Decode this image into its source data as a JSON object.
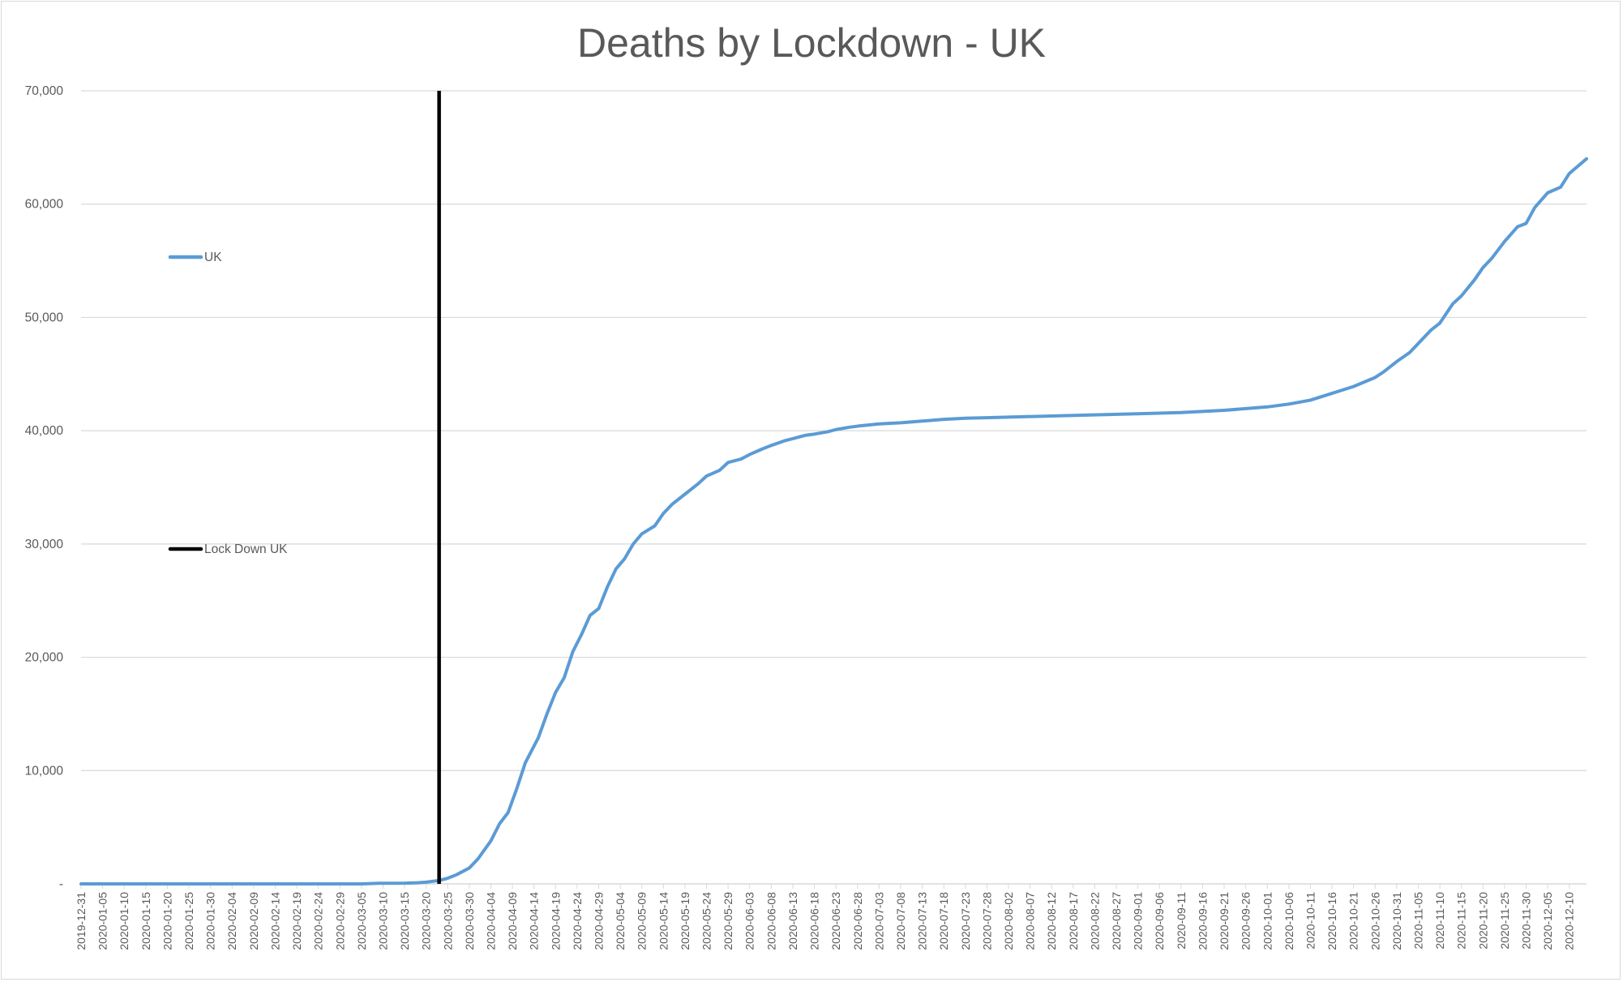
{
  "chart_data": {
    "type": "line",
    "title": "Deaths by Lockdown - UK",
    "xlabel": "",
    "ylabel": "",
    "x_range": [
      "2019-12-31",
      "2020-12-14"
    ],
    "ylim": [
      0,
      70000
    ],
    "y_ticks": [
      {
        "value": 0,
        "label": "-"
      },
      {
        "value": 10000,
        "label": "10,000"
      },
      {
        "value": 20000,
        "label": "20,000"
      },
      {
        "value": 30000,
        "label": "30,000"
      },
      {
        "value": 40000,
        "label": "40,000"
      },
      {
        "value": 50000,
        "label": "50,000"
      },
      {
        "value": 60000,
        "label": "60,000"
      },
      {
        "value": 70000,
        "label": "70,000"
      }
    ],
    "x_tick_labels": [
      "2019-12-31",
      "2020-01-05",
      "2020-01-10",
      "2020-01-15",
      "2020-01-20",
      "2020-01-25",
      "2020-01-30",
      "2020-02-04",
      "2020-02-09",
      "2020-02-14",
      "2020-02-19",
      "2020-02-24",
      "2020-02-29",
      "2020-03-05",
      "2020-03-10",
      "2020-03-15",
      "2020-03-20",
      "2020-03-25",
      "2020-03-30",
      "2020-04-04",
      "2020-04-09",
      "2020-04-14",
      "2020-04-19",
      "2020-04-24",
      "2020-04-29",
      "2020-05-04",
      "2020-05-09",
      "2020-05-14",
      "2020-05-19",
      "2020-05-24",
      "2020-05-29",
      "2020-06-03",
      "2020-06-08",
      "2020-06-13",
      "2020-06-18",
      "2020-06-23",
      "2020-06-28",
      "2020-07-03",
      "2020-07-08",
      "2020-07-13",
      "2020-07-18",
      "2020-07-23",
      "2020-07-28",
      "2020-08-02",
      "2020-08-07",
      "2020-08-12",
      "2020-08-17",
      "2020-08-22",
      "2020-08-27",
      "2020-09-01",
      "2020-09-06",
      "2020-09-11",
      "2020-09-16",
      "2020-09-21",
      "2020-09-26",
      "2020-10-01",
      "2020-10-06",
      "2020-10-11",
      "2020-10-16",
      "2020-10-21",
      "2020-10-26",
      "2020-10-31",
      "2020-11-05",
      "2020-11-10",
      "2020-11-15",
      "2020-11-20",
      "2020-11-25",
      "2020-11-30",
      "2020-12-05",
      "2020-12-10"
    ],
    "grid": true,
    "legend_placement": "left-inside",
    "series": [
      {
        "name": "UK",
        "color": "#5b9bd5",
        "points": [
          {
            "x": "2019-12-31",
            "y": 0
          },
          {
            "x": "2020-02-29",
            "y": 0
          },
          {
            "x": "2020-03-05",
            "y": 0
          },
          {
            "x": "2020-03-09",
            "y": 50
          },
          {
            "x": "2020-03-15",
            "y": 60
          },
          {
            "x": "2020-03-18",
            "y": 100
          },
          {
            "x": "2020-03-20",
            "y": 150
          },
          {
            "x": "2020-03-23",
            "y": 300
          },
          {
            "x": "2020-03-25",
            "y": 500
          },
          {
            "x": "2020-03-27",
            "y": 800
          },
          {
            "x": "2020-03-30",
            "y": 1400
          },
          {
            "x": "2020-04-01",
            "y": 2200
          },
          {
            "x": "2020-04-04",
            "y": 3800
          },
          {
            "x": "2020-04-06",
            "y": 5300
          },
          {
            "x": "2020-04-08",
            "y": 6300
          },
          {
            "x": "2020-04-10",
            "y": 8400
          },
          {
            "x": "2020-04-12",
            "y": 10700
          },
          {
            "x": "2020-04-15",
            "y": 12900
          },
          {
            "x": "2020-04-17",
            "y": 15000
          },
          {
            "x": "2020-04-19",
            "y": 16900
          },
          {
            "x": "2020-04-21",
            "y": 18200
          },
          {
            "x": "2020-04-23",
            "y": 20500
          },
          {
            "x": "2020-04-25",
            "y": 22000
          },
          {
            "x": "2020-04-27",
            "y": 23700
          },
          {
            "x": "2020-04-29",
            "y": 24300
          },
          {
            "x": "2020-05-01",
            "y": 26200
          },
          {
            "x": "2020-05-03",
            "y": 27800
          },
          {
            "x": "2020-05-05",
            "y": 28700
          },
          {
            "x": "2020-05-07",
            "y": 30000
          },
          {
            "x": "2020-05-09",
            "y": 30900
          },
          {
            "x": "2020-05-12",
            "y": 31600
          },
          {
            "x": "2020-05-14",
            "y": 32700
          },
          {
            "x": "2020-05-16",
            "y": 33500
          },
          {
            "x": "2020-05-19",
            "y": 34400
          },
          {
            "x": "2020-05-22",
            "y": 35300
          },
          {
            "x": "2020-05-24",
            "y": 36000
          },
          {
            "x": "2020-05-27",
            "y": 36500
          },
          {
            "x": "2020-05-29",
            "y": 37200
          },
          {
            "x": "2020-06-01",
            "y": 37500
          },
          {
            "x": "2020-06-03",
            "y": 37900
          },
          {
            "x": "2020-06-06",
            "y": 38400
          },
          {
            "x": "2020-06-08",
            "y": 38700
          },
          {
            "x": "2020-06-11",
            "y": 39100
          },
          {
            "x": "2020-06-13",
            "y": 39300
          },
          {
            "x": "2020-06-16",
            "y": 39600
          },
          {
            "x": "2020-06-18",
            "y": 39700
          },
          {
            "x": "2020-06-21",
            "y": 39900
          },
          {
            "x": "2020-06-23",
            "y": 40100
          },
          {
            "x": "2020-06-26",
            "y": 40300
          },
          {
            "x": "2020-06-28",
            "y": 40400
          },
          {
            "x": "2020-07-03",
            "y": 40600
          },
          {
            "x": "2020-07-08",
            "y": 40700
          },
          {
            "x": "2020-07-13",
            "y": 40850
          },
          {
            "x": "2020-07-18",
            "y": 41000
          },
          {
            "x": "2020-07-23",
            "y": 41100
          },
          {
            "x": "2020-07-28",
            "y": 41150
          },
          {
            "x": "2020-08-02",
            "y": 41200
          },
          {
            "x": "2020-08-12",
            "y": 41300
          },
          {
            "x": "2020-08-22",
            "y": 41400
          },
          {
            "x": "2020-09-01",
            "y": 41500
          },
          {
            "x": "2020-09-11",
            "y": 41600
          },
          {
            "x": "2020-09-16",
            "y": 41700
          },
          {
            "x": "2020-09-21",
            "y": 41800
          },
          {
            "x": "2020-09-26",
            "y": 41950
          },
          {
            "x": "2020-10-01",
            "y": 42100
          },
          {
            "x": "2020-10-06",
            "y": 42350
          },
          {
            "x": "2020-10-11",
            "y": 42700
          },
          {
            "x": "2020-10-16",
            "y": 43300
          },
          {
            "x": "2020-10-21",
            "y": 43900
          },
          {
            "x": "2020-10-26",
            "y": 44700
          },
          {
            "x": "2020-10-28",
            "y": 45200
          },
          {
            "x": "2020-10-31",
            "y": 46100
          },
          {
            "x": "2020-11-03",
            "y": 46900
          },
          {
            "x": "2020-11-05",
            "y": 47700
          },
          {
            "x": "2020-11-08",
            "y": 48900
          },
          {
            "x": "2020-11-10",
            "y": 49500
          },
          {
            "x": "2020-11-13",
            "y": 51200
          },
          {
            "x": "2020-11-15",
            "y": 51900
          },
          {
            "x": "2020-11-18",
            "y": 53300
          },
          {
            "x": "2020-11-20",
            "y": 54400
          },
          {
            "x": "2020-11-22",
            "y": 55200
          },
          {
            "x": "2020-11-25",
            "y": 56700
          },
          {
            "x": "2020-11-28",
            "y": 58000
          },
          {
            "x": "2020-11-30",
            "y": 58300
          },
          {
            "x": "2020-12-02",
            "y": 59700
          },
          {
            "x": "2020-12-05",
            "y": 61000
          },
          {
            "x": "2020-12-08",
            "y": 61500
          },
          {
            "x": "2020-12-10",
            "y": 62700
          },
          {
            "x": "2020-12-14",
            "y": 64000
          }
        ]
      },
      {
        "name": "Lock Down UK",
        "color": "#000000",
        "points": [
          {
            "x": "2020-03-23",
            "y": 0
          },
          {
            "x": "2020-03-23",
            "y": 70000
          }
        ]
      }
    ]
  }
}
